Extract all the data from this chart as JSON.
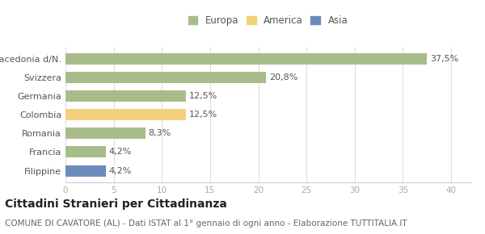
{
  "categories": [
    "Filippine",
    "Francia",
    "Romania",
    "Colombia",
    "Germania",
    "Svizzera",
    "Macedonia d/N."
  ],
  "values": [
    4.2,
    4.2,
    8.3,
    12.5,
    12.5,
    20.8,
    37.5
  ],
  "labels": [
    "4,2%",
    "4,2%",
    "8,3%",
    "12,5%",
    "12,5%",
    "20,8%",
    "37,5%"
  ],
  "colors": [
    "#6b8cba",
    "#a8bc8a",
    "#a8bc8a",
    "#f5d07a",
    "#a8bc8a",
    "#a8bc8a",
    "#a8bc8a"
  ],
  "legend_items": [
    {
      "label": "Europa",
      "color": "#a8bc8a"
    },
    {
      "label": "America",
      "color": "#f5d07a"
    },
    {
      "label": "Asia",
      "color": "#6b8cba"
    }
  ],
  "xlim": [
    0,
    42
  ],
  "xticks": [
    0,
    5,
    10,
    15,
    20,
    25,
    30,
    35,
    40
  ],
  "title": "Cittadini Stranieri per Cittadinanza",
  "subtitle": "COMUNE DI CAVATORE (AL) - Dati ISTAT al 1° gennaio di ogni anno - Elaborazione TUTTITALIA.IT",
  "bg_color": "#ffffff",
  "plot_bg_color": "#ffffff",
  "bar_height": 0.6,
  "title_fontsize": 10,
  "subtitle_fontsize": 7.5,
  "label_fontsize": 8,
  "tick_fontsize": 7.5,
  "legend_fontsize": 8.5,
  "ytick_fontsize": 8
}
